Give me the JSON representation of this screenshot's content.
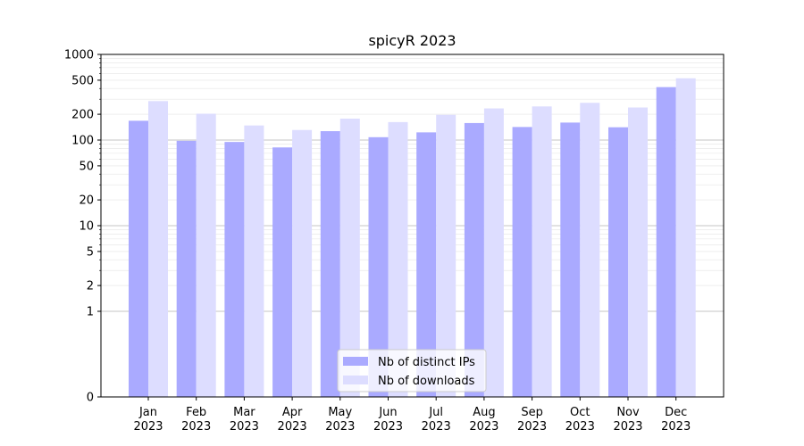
{
  "chart_data": {
    "type": "bar",
    "title": "spicyR 2023",
    "xlabel": "",
    "ylabel": "",
    "yscale": "symlog",
    "ylim": [
      0,
      1000
    ],
    "y_ticks": [
      "0",
      "1",
      "2",
      "5",
      "10",
      "20",
      "50",
      "100",
      "200",
      "500",
      "1000"
    ],
    "y_tick_values": [
      0,
      1,
      2,
      5,
      10,
      20,
      50,
      100,
      200,
      500,
      1000
    ],
    "categories": [
      {
        "month": "Jan",
        "year": "2023"
      },
      {
        "month": "Feb",
        "year": "2023"
      },
      {
        "month": "Mar",
        "year": "2023"
      },
      {
        "month": "Apr",
        "year": "2023"
      },
      {
        "month": "May",
        "year": "2023"
      },
      {
        "month": "Jun",
        "year": "2023"
      },
      {
        "month": "Jul",
        "year": "2023"
      },
      {
        "month": "Aug",
        "year": "2023"
      },
      {
        "month": "Sep",
        "year": "2023"
      },
      {
        "month": "Oct",
        "year": "2023"
      },
      {
        "month": "Nov",
        "year": "2023"
      },
      {
        "month": "Dec",
        "year": "2023"
      }
    ],
    "series": [
      {
        "name": "Nb of distinct IPs",
        "color": "#aaaaff",
        "values": [
          168,
          98,
          95,
          82,
          127,
          108,
          123,
          158,
          142,
          160,
          141,
          415
        ]
      },
      {
        "name": "Nb of downloads",
        "color": "#ddddff",
        "values": [
          285,
          203,
          148,
          131,
          178,
          162,
          197,
          234,
          247,
          272,
          240,
          526
        ]
      }
    ],
    "grid": true,
    "legend": "bottom-center"
  }
}
